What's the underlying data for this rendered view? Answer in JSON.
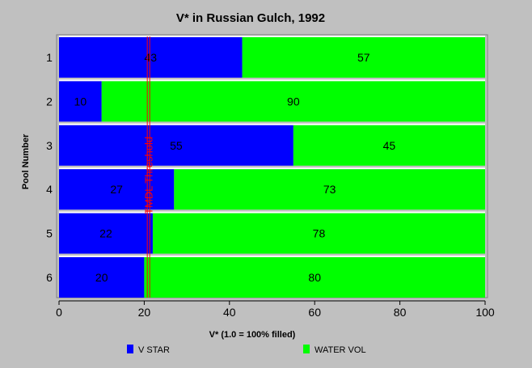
{
  "chart_data": {
    "type": "bar",
    "orientation": "horizontal",
    "stacked": true,
    "title": "V* in Russian Gulch, 1992",
    "xlabel": "V* (1.0 = 100% filled)",
    "ylabel": "Pool Number",
    "categories": [
      "1",
      "2",
      "3",
      "4",
      "5",
      "6"
    ],
    "series": [
      {
        "name": "V STAR",
        "color": "#0000ff",
        "values": [
          43,
          10,
          55,
          27,
          22,
          20
        ]
      },
      {
        "name": "WATER VOL",
        "color": "#00ff00",
        "values": [
          57,
          90,
          45,
          73,
          78,
          80
        ]
      }
    ],
    "xlim": [
      0,
      100
    ],
    "xticks": [
      0,
      20,
      40,
      60,
      80,
      100
    ],
    "threshold": {
      "value": 21,
      "label": "TMDL Threshold",
      "color": "#ff0000"
    },
    "legend_position": "bottom"
  }
}
